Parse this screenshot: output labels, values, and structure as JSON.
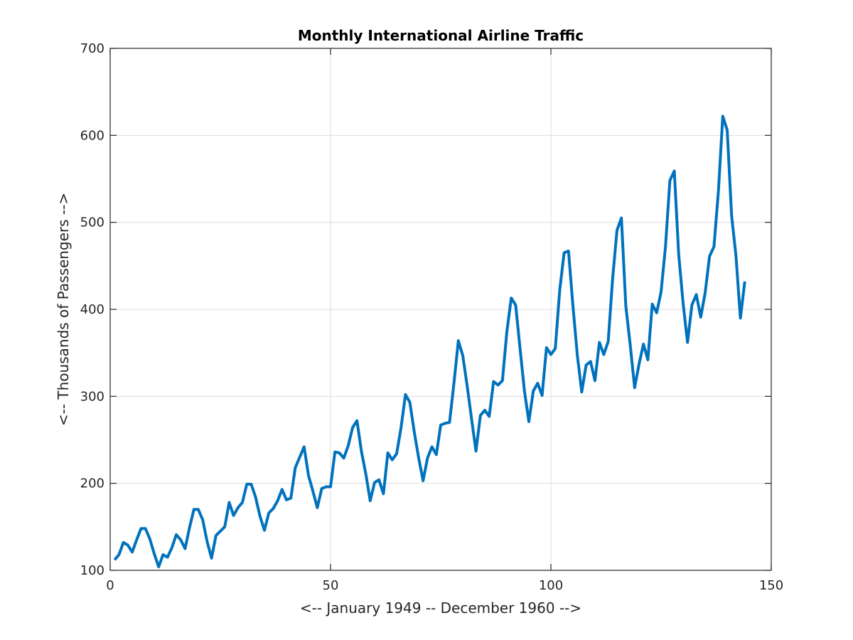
{
  "chart_data": {
    "type": "line",
    "title": "Monthly International Airline Traffic",
    "xlabel": "<-- January 1949 -- December 1960 -->",
    "ylabel": "<-- Thousands of Passengers -->",
    "xlim": [
      0,
      150
    ],
    "ylim": [
      100,
      700
    ],
    "xticks": [
      0,
      50,
      100,
      150
    ],
    "yticks": [
      100,
      200,
      300,
      400,
      500,
      600,
      700
    ],
    "xtick_labels": [
      "0",
      "50",
      "100",
      "150"
    ],
    "ytick_labels": [
      "100",
      "200",
      "300",
      "400",
      "500",
      "600",
      "700"
    ],
    "grid": true,
    "series": [
      {
        "name": "passengers",
        "color": "#0072BD",
        "x": [
          1,
          2,
          3,
          4,
          5,
          6,
          7,
          8,
          9,
          10,
          11,
          12,
          13,
          14,
          15,
          16,
          17,
          18,
          19,
          20,
          21,
          22,
          23,
          24,
          25,
          26,
          27,
          28,
          29,
          30,
          31,
          32,
          33,
          34,
          35,
          36,
          37,
          38,
          39,
          40,
          41,
          42,
          43,
          44,
          45,
          46,
          47,
          48,
          49,
          50,
          51,
          52,
          53,
          54,
          55,
          56,
          57,
          58,
          59,
          60,
          61,
          62,
          63,
          64,
          65,
          66,
          67,
          68,
          69,
          70,
          71,
          72,
          73,
          74,
          75,
          76,
          77,
          78,
          79,
          80,
          81,
          82,
          83,
          84,
          85,
          86,
          87,
          88,
          89,
          90,
          91,
          92,
          93,
          94,
          95,
          96,
          97,
          98,
          99,
          100,
          101,
          102,
          103,
          104,
          105,
          106,
          107,
          108,
          109,
          110,
          111,
          112,
          113,
          114,
          115,
          116,
          117,
          118,
          119,
          120,
          121,
          122,
          123,
          124,
          125,
          126,
          127,
          128,
          129,
          130,
          131,
          132,
          133,
          134,
          135,
          136,
          137,
          138,
          139,
          140,
          141,
          142,
          143,
          144
        ],
        "values": [
          112,
          118,
          132,
          129,
          121,
          135,
          148,
          148,
          136,
          119,
          104,
          118,
          115,
          126,
          141,
          135,
          125,
          149,
          170,
          170,
          158,
          133,
          114,
          140,
          145,
          150,
          178,
          163,
          172,
          178,
          199,
          199,
          184,
          162,
          146,
          166,
          171,
          180,
          193,
          181,
          183,
          218,
          230,
          242,
          209,
          191,
          172,
          194,
          196,
          196,
          236,
          235,
          229,
          243,
          264,
          272,
          237,
          211,
          180,
          201,
          204,
          188,
          235,
          227,
          234,
          264,
          302,
          293,
          259,
          229,
          203,
          229,
          242,
          233,
          267,
          269,
          270,
          315,
          364,
          347,
          312,
          274,
          237,
          278,
          284,
          277,
          317,
          313,
          318,
          374,
          413,
          405,
          355,
          306,
          271,
          306,
          315,
          301,
          356,
          348,
          355,
          422,
          465,
          467,
          404,
          347,
          305,
          336,
          340,
          318,
          362,
          348,
          363,
          435,
          491,
          505,
          404,
          359,
          310,
          337,
          360,
          342,
          406,
          396,
          420,
          472,
          548,
          559,
          463,
          407,
          362,
          405,
          417,
          391,
          419,
          461,
          472,
          535,
          622,
          606,
          508,
          461,
          390,
          432
        ]
      }
    ]
  }
}
